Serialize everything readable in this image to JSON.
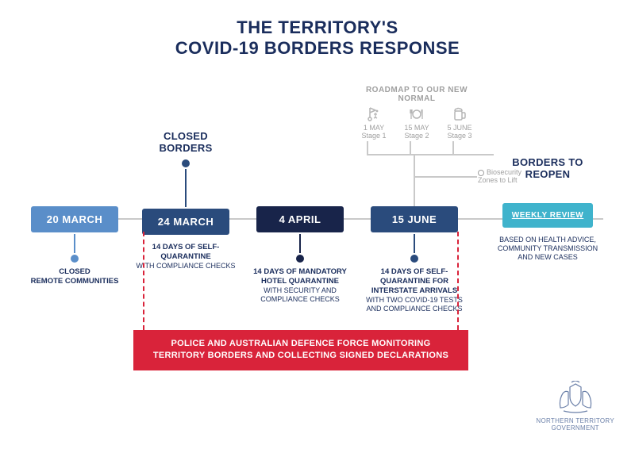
{
  "title": {
    "line1": "THE TERRITORY'S",
    "line2": "COVID-19 BORDERS RESPONSE"
  },
  "colors": {
    "navy": "#1a2d5c",
    "darknavy": "#18244a",
    "blue_light": "#5a8ec9",
    "blue_mid": "#3d6aa8",
    "teal": "#3fb3cc",
    "red": "#d9233a",
    "grey": "#a0a0a0",
    "line": "#c9c9c9"
  },
  "nodes": {
    "n1": {
      "date": "20 MARCH",
      "box_color": "#5a8ec9",
      "desc_bold": "CLOSED",
      "desc_rest": "REMOTE COMMUNITIES"
    },
    "n2": {
      "heading": "CLOSED BORDERS",
      "date": "24 MARCH",
      "box_color": "#2a4b7c",
      "desc_bold": "14 DAYS OF SELF-QUARANTINE",
      "desc_rest": "WITH COMPLIANCE CHECKS"
    },
    "n3": {
      "date": "4 APRIL",
      "box_color": "#18244a",
      "desc_bold": "14 DAYS OF MANDATORY HOTEL QUARANTINE",
      "desc_rest": "WITH SECURITY AND COMPLIANCE CHECKS"
    },
    "n4": {
      "date": "15 JUNE",
      "box_color": "#2a4b7c",
      "desc_bold": "14 DAYS OF SELF-QUARANTINE FOR INTERSTATE ARRIVALS",
      "desc_rest": "WITH TWO COVID-19 TESTS AND COMPLIANCE CHECKS"
    },
    "n5": {
      "heading": "BORDERS TO REOPEN",
      "review_label": "WEEKLY REVIEW",
      "box_color": "#3fb3cc",
      "desc_rest": "BASED ON HEALTH ADVICE, COMMUNITY TRANSMISSION AND NEW CASES"
    }
  },
  "roadmap": {
    "title": "ROADMAP TO OUR NEW NORMAL",
    "items": [
      {
        "date": "1 MAY",
        "stage": "Stage 1",
        "icon": "golf"
      },
      {
        "date": "15 MAY",
        "stage": "Stage 2",
        "icon": "dining"
      },
      {
        "date": "5 JUNE",
        "stage": "Stage 3",
        "icon": "beer"
      }
    ],
    "biosecurity": "Biosecurity Zones to Lift"
  },
  "banner": {
    "line1": "POLICE AND AUSTRALIAN DEFENCE FORCE MONITORING",
    "line2": "TERRITORY BORDERS AND COLLECTING SIGNED DECLARATIONS"
  },
  "logo": {
    "line1": "NORTHERN TERRITORY",
    "line2": "GOVERNMENT"
  }
}
